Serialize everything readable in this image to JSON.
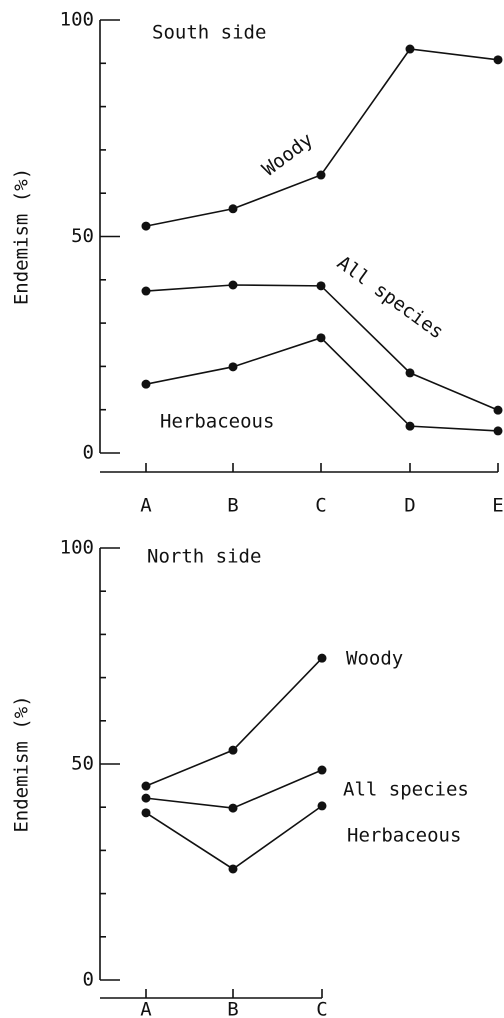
{
  "chart_data": [
    {
      "type": "line",
      "ylabel": "Endemism (%)",
      "categories": [
        "A",
        "B",
        "C",
        "D",
        "E"
      ],
      "ylim": [
        0,
        100
      ],
      "yticks": [
        0,
        50,
        100
      ],
      "minor_yticks": [
        10,
        20,
        30,
        40,
        60,
        70,
        80,
        90
      ],
      "annotations": [
        "South side",
        "Woody",
        "All species",
        "Herbaceous"
      ],
      "series": [
        {
          "name": "Woody",
          "color": "#111111",
          "values": [
            52.4,
            56.4,
            64.2,
            93.3,
            90.8
          ]
        },
        {
          "name": "All species",
          "color": "#111111",
          "values": [
            37.4,
            38.8,
            38.6,
            18.5,
            9.9
          ]
        },
        {
          "name": "Herbaceous",
          "color": "#111111",
          "values": [
            15.9,
            19.9,
            26.6,
            6.2,
            5.1
          ]
        }
      ]
    },
    {
      "type": "line",
      "ylabel": "Endemism (%)",
      "categories": [
        "A",
        "B",
        "C"
      ],
      "ylim": [
        0,
        100
      ],
      "yticks": [
        0,
        50,
        100
      ],
      "minor_yticks": [
        10,
        20,
        30,
        40,
        60,
        70,
        80,
        90
      ],
      "annotations": [
        "North side",
        "Woody",
        "All species",
        "Herbaceous"
      ],
      "series": [
        {
          "name": "Woody",
          "color": "#111111",
          "values": [
            44.9,
            53.2,
            74.5
          ]
        },
        {
          "name": "All species",
          "color": "#111111",
          "values": [
            42.1,
            39.8,
            48.6
          ]
        },
        {
          "name": "Herbaceous",
          "color": "#111111",
          "values": [
            38.7,
            25.7,
            40.3
          ]
        }
      ]
    }
  ]
}
